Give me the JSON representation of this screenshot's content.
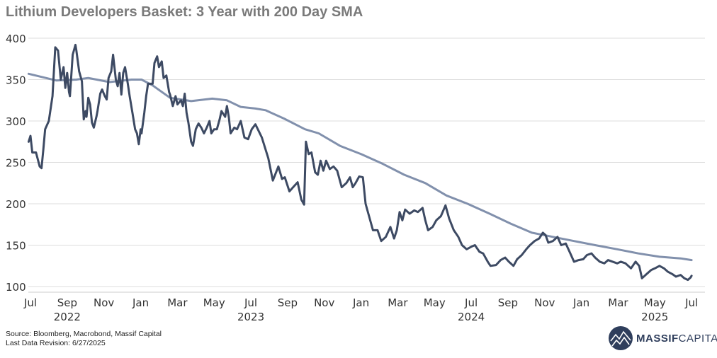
{
  "title": "Lithium Developers Basket: 3 Year with 200 Day SMA",
  "footer": {
    "source": "Source: Bloomberg, Macrobond, Massif Capital",
    "revision": "Last Data Revision: 6/27/2025"
  },
  "logo": {
    "bold": "MASSIF",
    "light": "CAPITAL"
  },
  "colors": {
    "basket": "#3d4a63",
    "sma": "#8190ac",
    "grid": "#dddddd",
    "title": "#7a7a7a",
    "logo": "#2f3e5c"
  },
  "chart_data": {
    "type": "line",
    "title": "Lithium Developers Basket: 3 Year with 200 Day SMA",
    "x_unit": "months since Jul 2022",
    "xlim": [
      -0.1,
      36.6
    ],
    "ylim": [
      92,
      412
    ],
    "yticks": [
      100,
      150,
      200,
      250,
      300,
      350,
      400
    ],
    "xticks": [
      {
        "m": 0,
        "label": "Jul"
      },
      {
        "m": 2,
        "label": "Sep"
      },
      {
        "m": 4,
        "label": "Nov"
      },
      {
        "m": 6,
        "label": "Jan"
      },
      {
        "m": 8,
        "label": "Mar"
      },
      {
        "m": 10,
        "label": "May"
      },
      {
        "m": 12,
        "label": "Jul"
      },
      {
        "m": 14,
        "label": "Sep"
      },
      {
        "m": 16,
        "label": "Nov"
      },
      {
        "m": 18,
        "label": "Jan"
      },
      {
        "m": 20,
        "label": "Mar"
      },
      {
        "m": 22,
        "label": "May"
      },
      {
        "m": 24,
        "label": "Jul"
      },
      {
        "m": 26,
        "label": "Sep"
      },
      {
        "m": 28,
        "label": "Nov"
      },
      {
        "m": 30,
        "label": "Jan"
      },
      {
        "m": 32,
        "label": "Mar"
      },
      {
        "m": 34,
        "label": "May"
      },
      {
        "m": 36,
        "label": "Jul"
      }
    ],
    "year_labels": [
      {
        "m": 2,
        "label": "2022"
      },
      {
        "m": 12,
        "label": "2023"
      },
      {
        "m": 24,
        "label": "2024"
      },
      {
        "m": 34,
        "label": "2025"
      }
    ],
    "grid": true,
    "legend": "none",
    "series": [
      {
        "name": "Lithium Developers Basket",
        "points": [
          [
            -0.1,
            275
          ],
          [
            0,
            282
          ],
          [
            0.1,
            262
          ],
          [
            0.3,
            262
          ],
          [
            0.5,
            245
          ],
          [
            0.6,
            243
          ],
          [
            0.7,
            265
          ],
          [
            0.8,
            290
          ],
          [
            1.0,
            300
          ],
          [
            1.2,
            330
          ],
          [
            1.35,
            389
          ],
          [
            1.5,
            385
          ],
          [
            1.65,
            350
          ],
          [
            1.8,
            365
          ],
          [
            1.9,
            340
          ],
          [
            2.0,
            358
          ],
          [
            2.1,
            335
          ],
          [
            2.15,
            330
          ],
          [
            2.3,
            380
          ],
          [
            2.45,
            392
          ],
          [
            2.5,
            385
          ],
          [
            2.65,
            360
          ],
          [
            2.8,
            348
          ],
          [
            2.9,
            302
          ],
          [
            3.0,
            312
          ],
          [
            3.05,
            305
          ],
          [
            3.15,
            328
          ],
          [
            3.25,
            320
          ],
          [
            3.35,
            298
          ],
          [
            3.45,
            292
          ],
          [
            3.6,
            306
          ],
          [
            3.65,
            312
          ],
          [
            3.8,
            333
          ],
          [
            3.9,
            338
          ],
          [
            4.05,
            330
          ],
          [
            4.15,
            326
          ],
          [
            4.25,
            352
          ],
          [
            4.4,
            360
          ],
          [
            4.5,
            380
          ],
          [
            4.65,
            350
          ],
          [
            4.75,
            342
          ],
          [
            4.85,
            358
          ],
          [
            4.95,
            332
          ],
          [
            5.05,
            358
          ],
          [
            5.15,
            365
          ],
          [
            5.3,
            345
          ],
          [
            5.4,
            330
          ],
          [
            5.55,
            310
          ],
          [
            5.7,
            290
          ],
          [
            5.8,
            285
          ],
          [
            5.9,
            272
          ],
          [
            6.0,
            290
          ],
          [
            6.05,
            285
          ],
          [
            6.2,
            310
          ],
          [
            6.3,
            330
          ],
          [
            6.4,
            345
          ],
          [
            6.65,
            345
          ],
          [
            6.75,
            370
          ],
          [
            6.9,
            378
          ],
          [
            7.0,
            365
          ],
          [
            7.15,
            372
          ],
          [
            7.25,
            352
          ],
          [
            7.4,
            355
          ],
          [
            7.55,
            335
          ],
          [
            7.6,
            332
          ],
          [
            7.75,
            318
          ],
          [
            7.9,
            330
          ],
          [
            8.0,
            320
          ],
          [
            8.2,
            325
          ],
          [
            8.3,
            318
          ],
          [
            8.4,
            333
          ],
          [
            8.5,
            310
          ],
          [
            8.6,
            298
          ],
          [
            8.75,
            275
          ],
          [
            8.85,
            270
          ],
          [
            9.0,
            290
          ],
          [
            9.15,
            297
          ],
          [
            9.3,
            292
          ],
          [
            9.45,
            285
          ],
          [
            9.6,
            292
          ],
          [
            9.75,
            300
          ],
          [
            9.85,
            285
          ],
          [
            10.0,
            290
          ],
          [
            10.15,
            290
          ],
          [
            10.3,
            302
          ],
          [
            10.4,
            312
          ],
          [
            10.6,
            305
          ],
          [
            10.7,
            318
          ],
          [
            10.8,
            305
          ],
          [
            10.9,
            285
          ],
          [
            11.1,
            292
          ],
          [
            11.25,
            290
          ],
          [
            11.45,
            300
          ],
          [
            11.65,
            280
          ],
          [
            11.85,
            278
          ],
          [
            12.05,
            290
          ],
          [
            12.25,
            296
          ],
          [
            12.6,
            280
          ],
          [
            12.95,
            255
          ],
          [
            13.2,
            228
          ],
          [
            13.5,
            245
          ],
          [
            13.7,
            230
          ],
          [
            13.85,
            232
          ],
          [
            14.1,
            215
          ],
          [
            14.3,
            220
          ],
          [
            14.55,
            226
          ],
          [
            14.75,
            205
          ],
          [
            14.9,
            199
          ],
          [
            15.0,
            275
          ],
          [
            15.15,
            260
          ],
          [
            15.3,
            262
          ],
          [
            15.5,
            238
          ],
          [
            15.65,
            235
          ],
          [
            15.8,
            252
          ],
          [
            15.95,
            240
          ],
          [
            16.1,
            252
          ],
          [
            16.3,
            242
          ],
          [
            16.5,
            245
          ],
          [
            16.7,
            240
          ],
          [
            16.95,
            220
          ],
          [
            17.2,
            225
          ],
          [
            17.4,
            232
          ],
          [
            17.55,
            220
          ],
          [
            17.7,
            225
          ],
          [
            17.9,
            233
          ],
          [
            18.1,
            232
          ],
          [
            18.25,
            200
          ],
          [
            18.4,
            188
          ],
          [
            18.65,
            168
          ],
          [
            18.9,
            168
          ],
          [
            19.1,
            155
          ],
          [
            19.35,
            160
          ],
          [
            19.6,
            172
          ],
          [
            19.8,
            158
          ],
          [
            19.95,
            168
          ],
          [
            20.1,
            190
          ],
          [
            20.25,
            180
          ],
          [
            20.4,
            193
          ],
          [
            20.65,
            188
          ],
          [
            20.9,
            192
          ],
          [
            21.1,
            190
          ],
          [
            21.35,
            195
          ],
          [
            21.5,
            180
          ],
          [
            21.65,
            168
          ],
          [
            21.9,
            172
          ],
          [
            22.1,
            180
          ],
          [
            22.35,
            185
          ],
          [
            22.6,
            198
          ],
          [
            22.8,
            182
          ],
          [
            23.05,
            168
          ],
          [
            23.3,
            160
          ],
          [
            23.5,
            150
          ],
          [
            23.75,
            145
          ],
          [
            24.0,
            148
          ],
          [
            24.2,
            150
          ],
          [
            24.45,
            142
          ],
          [
            24.65,
            140
          ],
          [
            24.9,
            130
          ],
          [
            25.05,
            125
          ],
          [
            25.35,
            126
          ],
          [
            25.6,
            132
          ],
          [
            25.85,
            135
          ],
          [
            26.05,
            130
          ],
          [
            26.3,
            125
          ],
          [
            26.5,
            133
          ],
          [
            26.75,
            138
          ],
          [
            27.0,
            145
          ],
          [
            27.2,
            150
          ],
          [
            27.45,
            155
          ],
          [
            27.7,
            158
          ],
          [
            27.9,
            165
          ],
          [
            28.05,
            162
          ],
          [
            28.2,
            153
          ],
          [
            28.45,
            155
          ],
          [
            28.7,
            160
          ],
          [
            28.9,
            150
          ],
          [
            29.15,
            152
          ],
          [
            29.4,
            140
          ],
          [
            29.6,
            130
          ],
          [
            29.85,
            132
          ],
          [
            30.1,
            133
          ],
          [
            30.3,
            138
          ],
          [
            30.55,
            140
          ],
          [
            30.75,
            135
          ],
          [
            31.0,
            130
          ],
          [
            31.25,
            128
          ],
          [
            31.45,
            132
          ],
          [
            31.7,
            130
          ],
          [
            31.95,
            128
          ],
          [
            32.15,
            130
          ],
          [
            32.4,
            128
          ],
          [
            32.7,
            122
          ],
          [
            32.95,
            130
          ],
          [
            33.15,
            125
          ],
          [
            33.3,
            110
          ],
          [
            33.55,
            115
          ],
          [
            33.8,
            120
          ],
          [
            34.0,
            122
          ],
          [
            34.25,
            125
          ],
          [
            34.5,
            122
          ],
          [
            34.7,
            118
          ],
          [
            34.95,
            115
          ],
          [
            35.15,
            112
          ],
          [
            35.4,
            114
          ],
          [
            35.6,
            110
          ],
          [
            35.8,
            108
          ],
          [
            35.95,
            111
          ],
          [
            36.0,
            113
          ]
        ]
      },
      {
        "name": "200 Day SMA",
        "points": [
          [
            -0.1,
            357
          ],
          [
            1.4,
            349
          ],
          [
            2.5,
            350
          ],
          [
            3.15,
            352
          ],
          [
            4.3,
            347
          ],
          [
            5.5,
            350
          ],
          [
            6.05,
            350
          ],
          [
            6.65,
            343
          ],
          [
            7.6,
            328
          ],
          [
            8.75,
            324
          ],
          [
            9.9,
            327
          ],
          [
            10.7,
            325
          ],
          [
            11.45,
            317
          ],
          [
            12.25,
            315
          ],
          [
            12.8,
            313
          ],
          [
            13.8,
            303
          ],
          [
            14.95,
            290
          ],
          [
            15.7,
            285
          ],
          [
            16.85,
            270
          ],
          [
            18.0,
            260
          ],
          [
            19.2,
            248
          ],
          [
            20.35,
            235
          ],
          [
            21.5,
            225
          ],
          [
            22.65,
            210
          ],
          [
            23.8,
            200
          ],
          [
            25.0,
            188
          ],
          [
            26.15,
            176
          ],
          [
            27.3,
            165
          ],
          [
            28.45,
            160
          ],
          [
            29.6,
            155
          ],
          [
            30.75,
            150
          ],
          [
            31.95,
            145
          ],
          [
            33.1,
            140
          ],
          [
            34.25,
            136
          ],
          [
            35.4,
            134
          ],
          [
            36.0,
            132
          ]
        ]
      }
    ]
  }
}
